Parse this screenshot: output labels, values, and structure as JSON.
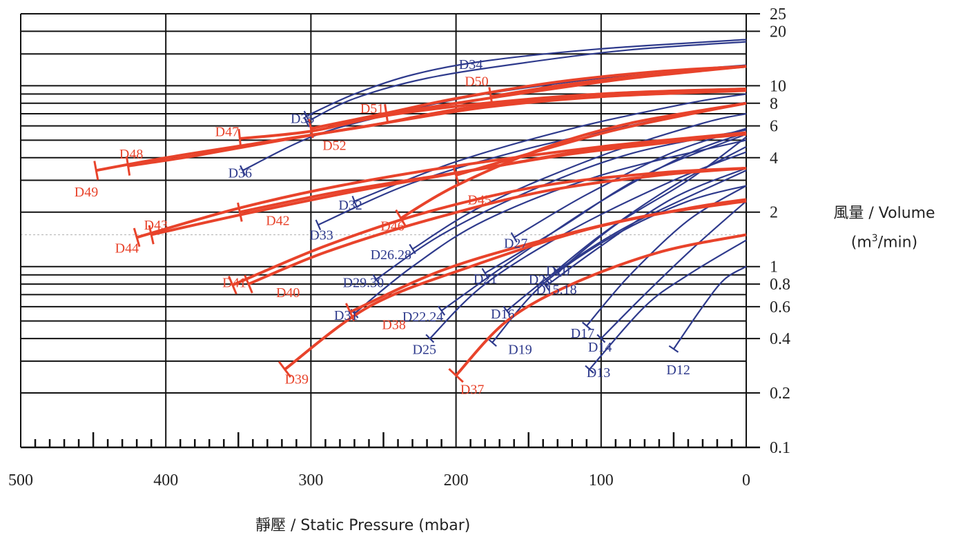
{
  "axes": {
    "y_title": "風量 / Volume",
    "y_unit_base": "(m",
    "y_unit_sup": "3",
    "y_unit_end": "/min)",
    "x_title": "靜壓 /  Static Pressure (mbar)"
  },
  "colors": {
    "red": "#e8432b",
    "blue": "#2e3a8c",
    "grid": "#111111"
  },
  "chart_data": {
    "type": "line",
    "xlabel": "靜壓 /  Static Pressure (mbar)",
    "ylabel": "風量 / Volume (m3/min)",
    "xlim": [
      500,
      0
    ],
    "ylim": [
      0.1,
      25
    ],
    "yscale": "log",
    "x_ticks": [
      500,
      400,
      300,
      200,
      100,
      0
    ],
    "y_ticks": [
      {
        "v": 25,
        "label": "25"
      },
      {
        "v": 20,
        "label": "20"
      },
      {
        "v": 10,
        "label": "10"
      },
      {
        "v": 8,
        "label": "8"
      },
      {
        "v": 6,
        "label": "6"
      },
      {
        "v": 4,
        "label": "4"
      },
      {
        "v": 2,
        "label": "2"
      },
      {
        "v": 1,
        "label": "1"
      },
      {
        "v": 0.8,
        "label": "0.8"
      },
      {
        "v": 0.6,
        "label": "0.6"
      },
      {
        "v": 0.4,
        "label": "0.4"
      },
      {
        "v": 0.2,
        "label": "0.2"
      },
      {
        "v": 0.1,
        "label": "0.1"
      }
    ],
    "hlines_extra": [
      15,
      9,
      7,
      5,
      3,
      0.9,
      0.7,
      0.5,
      0.3
    ],
    "dashed_line": 1.5,
    "grid": true,
    "series": [
      {
        "name": "D12",
        "color": "blue",
        "points": [
          [
            50,
            0.35
          ],
          [
            30,
            0.6
          ],
          [
            15,
            0.85
          ],
          [
            0,
            1.0
          ]
        ],
        "label_x": 55,
        "label_y": 0.27
      },
      {
        "name": "D13",
        "color": "blue",
        "points": [
          [
            108,
            0.27
          ],
          [
            70,
            0.6
          ],
          [
            40,
            0.9
          ],
          [
            0,
            1.4
          ]
        ],
        "label_x": 110,
        "label_y": 0.26
      },
      {
        "name": "D14",
        "color": "blue",
        "points": [
          [
            100,
            0.4
          ],
          [
            70,
            0.7
          ],
          [
            35,
            1.3
          ],
          [
            0,
            2.3
          ]
        ],
        "label_x": 109,
        "label_y": 0.36
      },
      {
        "name": "D17",
        "color": "blue",
        "points": [
          [
            110,
            0.47
          ],
          [
            80,
            0.9
          ],
          [
            40,
            1.8
          ],
          [
            0,
            2.8
          ]
        ],
        "label_x": 121,
        "label_y": 0.43
      },
      {
        "name": "D19",
        "color": "blue",
        "points": [
          [
            175,
            0.38
          ],
          [
            140,
            0.8
          ],
          [
            90,
            1.5
          ],
          [
            40,
            2.3
          ],
          [
            0,
            2.8
          ]
        ],
        "label_x": 164,
        "label_y": 0.35
      },
      {
        "name": "D16",
        "color": "blue",
        "points": [
          [
            165,
            0.57
          ],
          [
            130,
            0.95
          ],
          [
            80,
            1.7
          ],
          [
            0,
            3.4
          ]
        ],
        "label_x": 176,
        "label_y": 0.55
      },
      {
        "name": "D15.18",
        "color": "blue",
        "points": [
          [
            138,
            0.78
          ],
          [
            100,
            1.3
          ],
          [
            50,
            2.4
          ],
          [
            0,
            3.5
          ]
        ],
        "label_x": 145,
        "label_y": 0.75
      },
      {
        "name": "D23",
        "color": "blue",
        "points": [
          [
            138,
            0.85
          ],
          [
            100,
            1.5
          ],
          [
            50,
            2.8
          ],
          [
            0,
            4.6
          ]
        ],
        "label_x": 150,
        "label_y": 0.85
      },
      {
        "name": "D20",
        "color": "blue",
        "points": [
          [
            130,
            0.93
          ],
          [
            90,
            1.7
          ],
          [
            40,
            3.0
          ],
          [
            0,
            5.2
          ]
        ],
        "label_x": 138,
        "label_y": 0.95
      },
      {
        "name": "D25",
        "color": "blue",
        "points": [
          [
            218,
            0.4
          ],
          [
            180,
            0.8
          ],
          [
            120,
            1.6
          ],
          [
            50,
            3.0
          ],
          [
            0,
            4.3
          ]
        ],
        "label_x": 230,
        "label_y": 0.35
      },
      {
        "name": "D22.24",
        "color": "blue",
        "points": [
          [
            210,
            0.57
          ],
          [
            160,
            1.1
          ],
          [
            100,
            2.3
          ],
          [
            40,
            4.2
          ],
          [
            0,
            5.5
          ]
        ],
        "label_x": 237,
        "label_y": 0.53
      },
      {
        "name": "D21",
        "color": "blue",
        "points": [
          [
            180,
            0.92
          ],
          [
            130,
            1.6
          ],
          [
            70,
            3.2
          ],
          [
            0,
            5.4
          ]
        ],
        "label_x": 188,
        "label_y": 0.86
      },
      {
        "name": "D27",
        "color": "blue",
        "points": [
          [
            160,
            1.45
          ],
          [
            110,
            2.5
          ],
          [
            50,
            4.3
          ],
          [
            0,
            5.8
          ]
        ],
        "label_x": 167,
        "label_y": 1.35
      },
      {
        "name": "D26.28",
        "color": "blue",
        "points": [
          [
            230,
            1.25
          ],
          [
            180,
            2.2
          ],
          [
            100,
            4.1
          ],
          [
            30,
            6.2
          ],
          [
            0,
            7.0
          ]
        ],
        "label_x": 259,
        "label_y": 1.17
      },
      {
        "name": "D29.30",
        "color": "blue",
        "points": [
          [
            255,
            0.85
          ],
          [
            210,
            1.5
          ],
          [
            150,
            2.6
          ],
          [
            80,
            4.2
          ],
          [
            0,
            5.7
          ]
        ],
        "label_x": 278,
        "label_y": 0.82
      },
      {
        "name": "D31",
        "color": "blue",
        "points": [
          [
            270,
            0.55
          ],
          [
            230,
            1.0
          ],
          [
            180,
            1.8
          ],
          [
            100,
            3.2
          ],
          [
            0,
            5.0
          ]
        ],
        "label_x": 284,
        "label_y": 0.54
      },
      {
        "name": "D33",
        "color": "blue",
        "points": [
          [
            295,
            1.7
          ],
          [
            230,
            2.9
          ],
          [
            150,
            4.5
          ],
          [
            60,
            6.5
          ],
          [
            0,
            8.1
          ]
        ],
        "label_x": 301,
        "label_y": 1.5
      },
      {
        "name": "D32",
        "color": "blue",
        "points": [
          [
            270,
            2.3
          ],
          [
            200,
            3.8
          ],
          [
            120,
            5.8
          ],
          [
            40,
            8.0
          ],
          [
            0,
            9.0
          ]
        ],
        "label_x": 281,
        "label_y": 2.2
      },
      {
        "name": "D36",
        "color": "blue",
        "points": [
          [
            347,
            3.4
          ],
          [
            300,
            5.2
          ],
          [
            250,
            6.8
          ],
          [
            180,
            9.0
          ],
          [
            80,
            11.5
          ],
          [
            0,
            13.0
          ]
        ],
        "label_x": 357,
        "label_y": 3.3
      },
      {
        "name": "D35",
        "color": "blue",
        "points": [
          [
            303,
            6.3
          ],
          [
            270,
            8.5
          ],
          [
            220,
            11.0
          ],
          [
            150,
            13.5
          ],
          [
            80,
            15.8
          ],
          [
            0,
            17.5
          ]
        ],
        "label_x": 314,
        "label_y": 6.6
      },
      {
        "name": "D34",
        "color": "blue",
        "points": [
          [
            303,
            6.8
          ],
          [
            270,
            9.0
          ],
          [
            230,
            11.5
          ],
          [
            180,
            13.7
          ],
          [
            100,
            16.0
          ],
          [
            0,
            18.0
          ]
        ],
        "label_x": 198,
        "label_y": 13.2
      },
      {
        "name": "D37",
        "color": "red",
        "points": [
          [
            200,
            0.25
          ],
          [
            165,
            0.5
          ],
          [
            120,
            0.8
          ],
          [
            60,
            1.2
          ],
          [
            0,
            1.5
          ]
        ],
        "label_x": 197,
        "label_y": 0.21
      },
      {
        "name": "D38",
        "color": "red",
        "points": [
          [
            273,
            0.56
          ],
          [
            210,
            0.95
          ],
          [
            140,
            1.4
          ],
          [
            70,
            1.9
          ],
          [
            0,
            2.3
          ]
        ],
        "label_x": 251,
        "label_y": 0.48
      },
      {
        "name": "D39",
        "color": "red",
        "points": [
          [
            318,
            0.27
          ],
          [
            260,
            0.6
          ],
          [
            190,
            1.0
          ],
          [
            110,
            1.6
          ],
          [
            40,
            2.1
          ],
          [
            0,
            2.35
          ]
        ],
        "label_x": 318,
        "label_y": 0.24
      },
      {
        "name": "D40",
        "color": "red",
        "points": [
          [
            343,
            0.8
          ],
          [
            290,
            1.2
          ],
          [
            220,
            1.8
          ],
          [
            140,
            2.6
          ],
          [
            60,
            3.2
          ],
          [
            0,
            3.5
          ]
        ],
        "label_x": 324,
        "label_y": 0.72
      },
      {
        "name": "D41",
        "color": "red",
        "points": [
          [
            354,
            0.79
          ],
          [
            290,
            1.3
          ],
          [
            220,
            2.0
          ],
          [
            140,
            2.8
          ],
          [
            60,
            3.3
          ],
          [
            0,
            3.5
          ]
        ],
        "label_x": 361,
        "label_y": 0.82
      },
      {
        "name": "D42",
        "color": "red",
        "points": [
          [
            349,
            2.0
          ],
          [
            280,
            2.6
          ],
          [
            200,
            3.3
          ],
          [
            120,
            4.2
          ],
          [
            40,
            5.0
          ],
          [
            0,
            5.5
          ]
        ],
        "label_x": 331,
        "label_y": 1.8
      },
      {
        "name": "D43",
        "color": "red",
        "points": [
          [
            410,
            1.5
          ],
          [
            340,
            2.0
          ],
          [
            260,
            2.7
          ],
          [
            180,
            3.5
          ],
          [
            100,
            4.5
          ],
          [
            0,
            5.4
          ]
        ],
        "label_x": 415,
        "label_y": 1.7
      },
      {
        "name": "D44",
        "color": "red",
        "points": [
          [
            420,
            1.45
          ],
          [
            350,
            2.1
          ],
          [
            280,
            2.8
          ],
          [
            200,
            3.6
          ],
          [
            100,
            4.6
          ],
          [
            0,
            5.5
          ]
        ],
        "label_x": 435,
        "label_y": 1.27
      },
      {
        "name": "D45",
        "color": "red",
        "points": [
          [
            200,
            3.2
          ],
          [
            150,
            4.2
          ],
          [
            90,
            5.7
          ],
          [
            30,
            7.2
          ],
          [
            0,
            8.0
          ]
        ],
        "label_x": 192,
        "label_y": 2.35
      },
      {
        "name": "D46",
        "color": "red",
        "points": [
          [
            238,
            1.85
          ],
          [
            200,
            2.8
          ],
          [
            140,
            4.5
          ],
          [
            80,
            6.2
          ],
          [
            0,
            8.0
          ]
        ],
        "label_x": 252,
        "label_y": 1.68
      },
      {
        "name": "D47",
        "color": "red",
        "points": [
          [
            349,
            5.1
          ],
          [
            300,
            5.6
          ],
          [
            250,
            6.8
          ],
          [
            180,
            8.0
          ],
          [
            100,
            9.0
          ],
          [
            0,
            9.6
          ]
        ],
        "label_x": 366,
        "label_y": 5.6
      },
      {
        "name": "D48",
        "color": "red",
        "points": [
          [
            426,
            3.6
          ],
          [
            380,
            4.1
          ],
          [
            320,
            5.0
          ],
          [
            250,
            6.2
          ],
          [
            180,
            7.6
          ],
          [
            100,
            8.7
          ],
          [
            0,
            9.4
          ]
        ],
        "label_x": 432,
        "label_y": 4.2
      },
      {
        "name": "D49",
        "color": "red",
        "points": [
          [
            448,
            3.4
          ],
          [
            400,
            4.0
          ],
          [
            330,
            4.9
          ],
          [
            260,
            6.0
          ],
          [
            190,
            7.6
          ],
          [
            100,
            9.0
          ],
          [
            0,
            9.6
          ]
        ],
        "label_x": 463,
        "label_y": 2.6
      },
      {
        "name": "D50",
        "color": "red",
        "points": [
          [
            176,
            8.7
          ],
          [
            130,
            10.0
          ],
          [
            80,
            11.2
          ],
          [
            0,
            12.8
          ]
        ],
        "label_x": 194,
        "label_y": 10.6
      },
      {
        "name": "D51",
        "color": "red",
        "points": [
          [
            248,
            7.0
          ],
          [
            200,
            8.0
          ],
          [
            150,
            9.2
          ],
          [
            80,
            11.0
          ],
          [
            0,
            12.8
          ]
        ],
        "label_x": 266,
        "label_y": 7.5
      },
      {
        "name": "D52",
        "color": "red",
        "points": [
          [
            300,
            5.8
          ],
          [
            250,
            7.0
          ],
          [
            200,
            8.5
          ],
          [
            130,
            10.5
          ],
          [
            60,
            12.0
          ],
          [
            0,
            12.8
          ]
        ],
        "label_x": 292,
        "label_y": 4.7
      }
    ]
  }
}
